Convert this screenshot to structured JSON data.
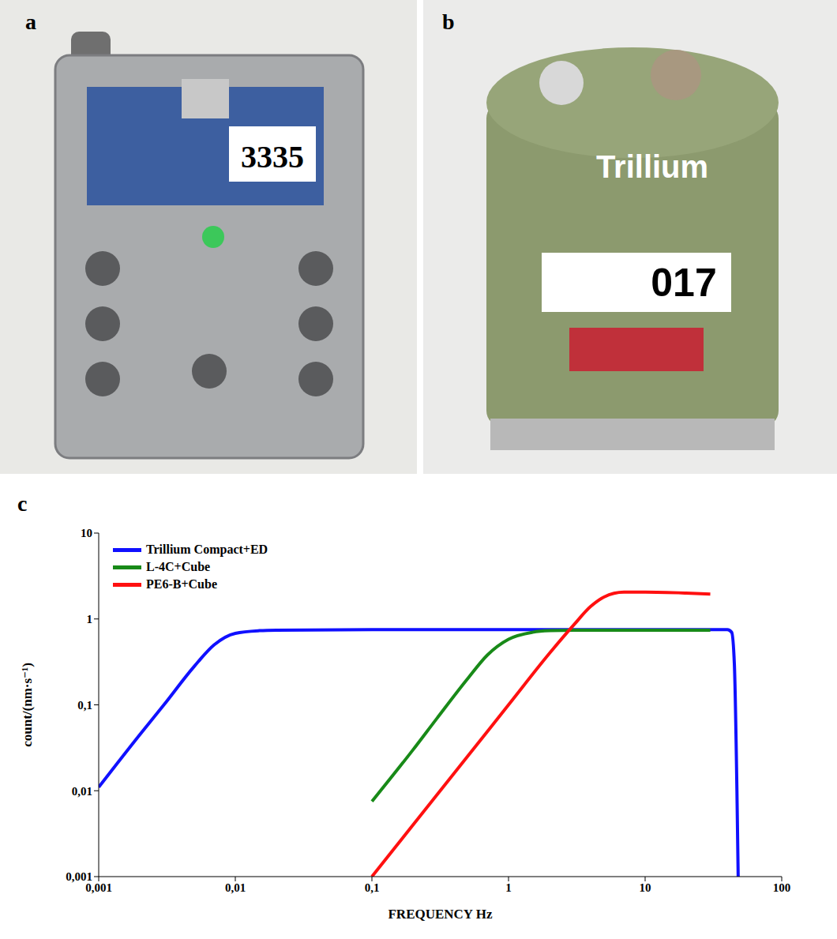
{
  "panels": [
    {
      "label": "a",
      "texts": [
        "3335"
      ]
    },
    {
      "label": "b",
      "texts": [
        "Trillium",
        "017"
      ]
    },
    {
      "label": "c"
    }
  ],
  "chart_data": {
    "type": "line",
    "log": true,
    "grid": false,
    "legend": "upper left",
    "x_label": "FREQUENCY  Hz",
    "y_label": "count/(nm·s⁻¹)",
    "xlim": [
      0.001,
      100
    ],
    "ylim": [
      0.001,
      10
    ],
    "xticks": [
      {
        "value": 0.001,
        "label": "0,001"
      },
      {
        "value": 0.01,
        "label": "0,01"
      },
      {
        "value": 0.1,
        "label": "0,1"
      },
      1,
      10,
      100
    ],
    "yticks": [
      {
        "value": 0.001,
        "label": "0,001"
      },
      {
        "value": 0.01,
        "label": "0,01"
      },
      {
        "value": 0.1,
        "label": "0,1"
      },
      1,
      10
    ],
    "series": [
      {
        "name": "Trillium Compact+ED",
        "color": "#1010ff",
        "x": [
          0.001,
          0.002,
          0.003,
          0.005,
          0.007,
          0.01,
          0.015,
          0.02,
          0.1,
          1,
          10,
          30,
          40,
          43,
          45,
          47,
          48
        ],
        "values": [
          0.011,
          0.045,
          0.1,
          0.28,
          0.5,
          0.68,
          0.73,
          0.74,
          0.75,
          0.75,
          0.75,
          0.75,
          0.75,
          0.7,
          0.3,
          0.01,
          0.001
        ]
      },
      {
        "name": "L-4C+Cube",
        "color": "#188a18",
        "x": [
          0.1,
          0.2,
          0.3,
          0.5,
          0.7,
          1,
          1.5,
          2,
          3,
          10,
          30
        ],
        "values": [
          0.0075,
          0.03,
          0.07,
          0.2,
          0.38,
          0.58,
          0.7,
          0.73,
          0.74,
          0.74,
          0.74
        ]
      },
      {
        "name": "PE6-B+Cube",
        "color": "#ff1010",
        "x": [
          0.1,
          0.2,
          0.5,
          1,
          2,
          3,
          4,
          5,
          7,
          10,
          20,
          30
        ],
        "values": [
          0.001,
          0.004,
          0.025,
          0.1,
          0.4,
          0.85,
          1.4,
          1.8,
          2.05,
          2.05,
          2.0,
          1.95
        ]
      }
    ]
  }
}
